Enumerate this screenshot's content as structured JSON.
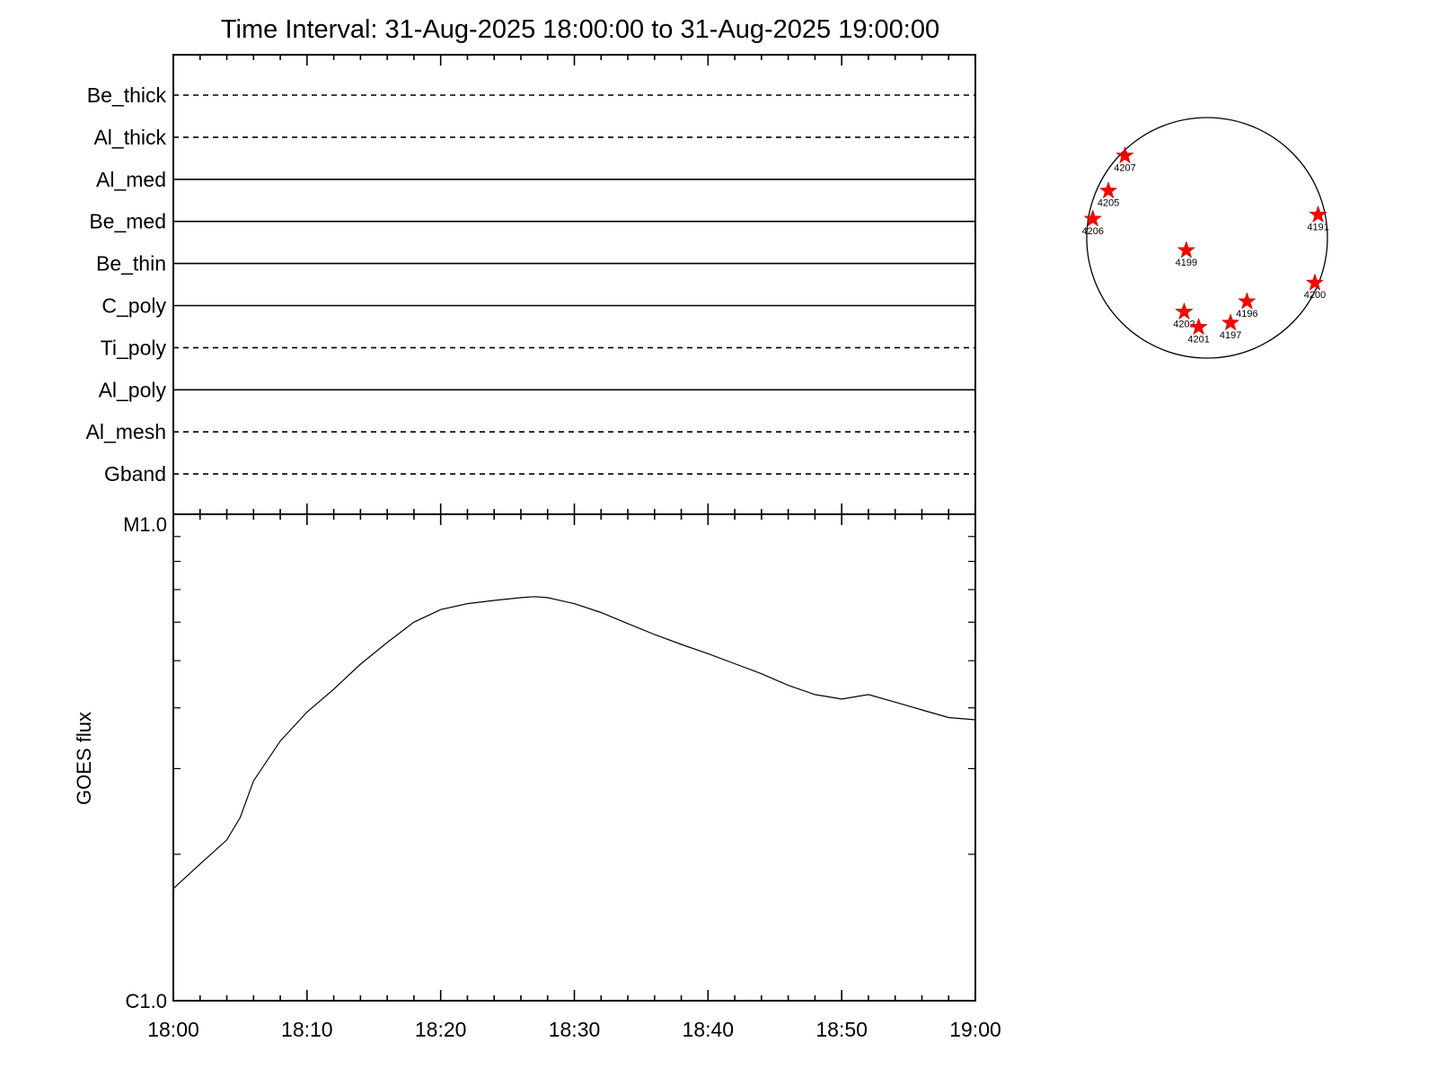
{
  "chart_data": [
    {
      "type": "timeline",
      "title": "Time Interval: 31-Aug-2025 18:00:00 to 31-Aug-2025 19:00:00",
      "rows": [
        {
          "label": "Be_thick",
          "line": "dashed"
        },
        {
          "label": "Al_thick",
          "line": "dashed"
        },
        {
          "label": "Al_med",
          "line": "solid"
        },
        {
          "label": "Be_med",
          "line": "solid"
        },
        {
          "label": "Be_thin",
          "line": "solid"
        },
        {
          "label": "C_poly",
          "line": "solid"
        },
        {
          "label": "Ti_poly",
          "line": "dashed"
        },
        {
          "label": "Al_poly",
          "line": "solid"
        },
        {
          "label": "Al_mesh",
          "line": "dashed"
        },
        {
          "label": "Gband",
          "line": "dashed"
        }
      ]
    },
    {
      "type": "line",
      "ylabel": "GOES flux",
      "yscale": "log",
      "ylim": [
        1e-06,
        1e-05
      ],
      "ytick_labels": [
        "C1.0",
        "M1.0"
      ],
      "xlim": [
        "18:00",
        "19:00"
      ],
      "xtick_labels": [
        "18:00",
        "18:10",
        "18:20",
        "18:30",
        "18:40",
        "18:50",
        "19:00"
      ],
      "series": [
        {
          "color": "#000000",
          "x": [
            "18:00",
            "18:02",
            "18:04",
            "18:05",
            "18:06",
            "18:08",
            "18:10",
            "18:12",
            "18:14",
            "18:16",
            "18:18",
            "18:20",
            "18:22",
            "18:24",
            "18:26",
            "18:27",
            "18:28",
            "18:30",
            "18:32",
            "18:34",
            "18:36",
            "18:38",
            "18:40",
            "18:42",
            "18:44",
            "18:46",
            "18:48",
            "18:50",
            "18:52",
            "18:54",
            "18:56",
            "18:58",
            "19:00"
          ],
          "y": [
            1.7e-06,
            1.91e-06,
            2.14e-06,
            2.38e-06,
            2.83e-06,
            3.42e-06,
            3.92e-06,
            4.37e-06,
            4.92e-06,
            5.45e-06,
            6e-06,
            6.37e-06,
            6.55e-06,
            6.65e-06,
            6.74e-06,
            6.77e-06,
            6.74e-06,
            6.55e-06,
            6.28e-06,
            5.96e-06,
            5.66e-06,
            5.4e-06,
            5.17e-06,
            4.93e-06,
            4.7e-06,
            4.45e-06,
            4.26e-06,
            4.17e-06,
            4.26e-06,
            4.11e-06,
            3.96e-06,
            3.82e-06,
            3.78e-06
          ]
        }
      ]
    }
  ],
  "solar_disk": {
    "marker_color": "#ff0000",
    "marker_icon": "star",
    "regions": [
      {
        "label": "4207",
        "lon": -69,
        "lat": 43
      },
      {
        "label": "4205",
        "lon": -63,
        "lat": 23
      },
      {
        "label": "4206",
        "lon": -74,
        "lat": 9
      },
      {
        "label": "4199",
        "lon": -10,
        "lat": -6
      },
      {
        "label": "4191",
        "lon": 70,
        "lat": 11
      },
      {
        "label": "4200",
        "lon": 75,
        "lat": -22
      },
      {
        "label": "4196",
        "lon": 23,
        "lat": -32
      },
      {
        "label": "4202",
        "lon": -14,
        "lat": -38
      },
      {
        "label": "4201",
        "lon": -6,
        "lat": -48
      },
      {
        "label": "4197",
        "lon": 16,
        "lat": -45
      }
    ]
  }
}
